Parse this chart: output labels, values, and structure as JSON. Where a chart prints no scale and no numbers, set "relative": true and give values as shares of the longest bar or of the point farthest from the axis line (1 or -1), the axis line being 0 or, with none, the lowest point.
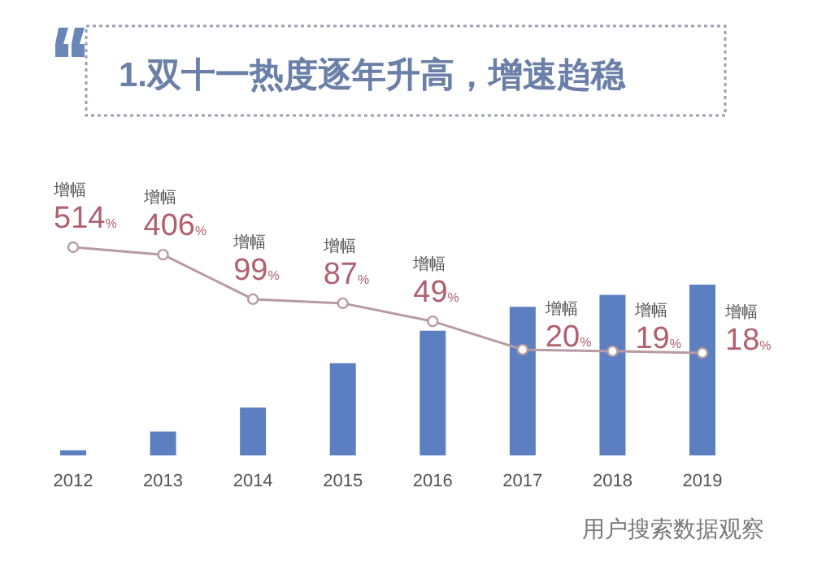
{
  "chart_data": [
    {
      "type": "bar",
      "title": "1.双十一热度逐年升高，增速趋稳",
      "categories": [
        "2012",
        "2013",
        "2014",
        "2015",
        "2016",
        "2017",
        "2018",
        "2019"
      ],
      "relative": true,
      "series": [
        {
          "color": "#5b7fc0",
          "values": [
            0.03,
            0.14,
            0.28,
            0.54,
            0.73,
            0.87,
            0.94,
            1
          ]
        }
      ]
    },
    {
      "type": "line",
      "categories": [
        "2012",
        "2013",
        "2014",
        "2015",
        "2016",
        "2017",
        "2018",
        "2019"
      ],
      "tick_labels": false,
      "log": true,
      "marker": "circle",
      "annotations": [
        "用户搜索数据观察"
      ],
      "series": [
        {
          "color": "#b89aa2",
          "values": [
            514,
            406,
            99,
            87,
            49,
            20,
            19,
            18
          ],
          "value_labels": [
            "增幅 514%",
            "增幅 406%",
            "增幅 99%",
            "增幅 87%",
            "增幅 49%",
            "增幅 20%",
            "增幅 19%",
            "增幅 18%"
          ]
        }
      ]
    }
  ]
}
